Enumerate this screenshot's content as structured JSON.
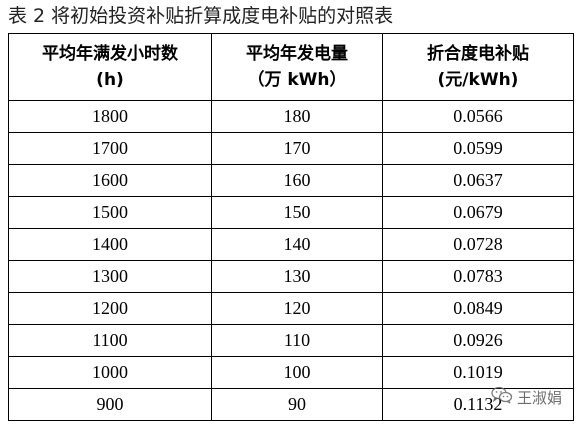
{
  "caption": "表 2  将初始投资补贴折算成度电补贴的对照表",
  "table": {
    "headers": [
      {
        "line1": "平均年满发小时数",
        "line2": "(h)"
      },
      {
        "line1": "平均年发电量",
        "line2": "（万 kWh）"
      },
      {
        "line1": "折合度电补贴",
        "line2": "(元/kWh)"
      }
    ],
    "rows": [
      [
        "1800",
        "180",
        "0.0566"
      ],
      [
        "1700",
        "170",
        "0.0599"
      ],
      [
        "1600",
        "160",
        "0.0637"
      ],
      [
        "1500",
        "150",
        "0.0679"
      ],
      [
        "1400",
        "140",
        "0.0728"
      ],
      [
        "1300",
        "130",
        "0.0783"
      ],
      [
        "1200",
        "120",
        "0.0849"
      ],
      [
        "1100",
        "110",
        "0.0926"
      ],
      [
        "1000",
        "100",
        "0.1019"
      ],
      [
        "900",
        "90",
        "0.1132"
      ]
    ]
  },
  "watermark": {
    "text": "王淑娟",
    "icon": "wechat-icon"
  }
}
